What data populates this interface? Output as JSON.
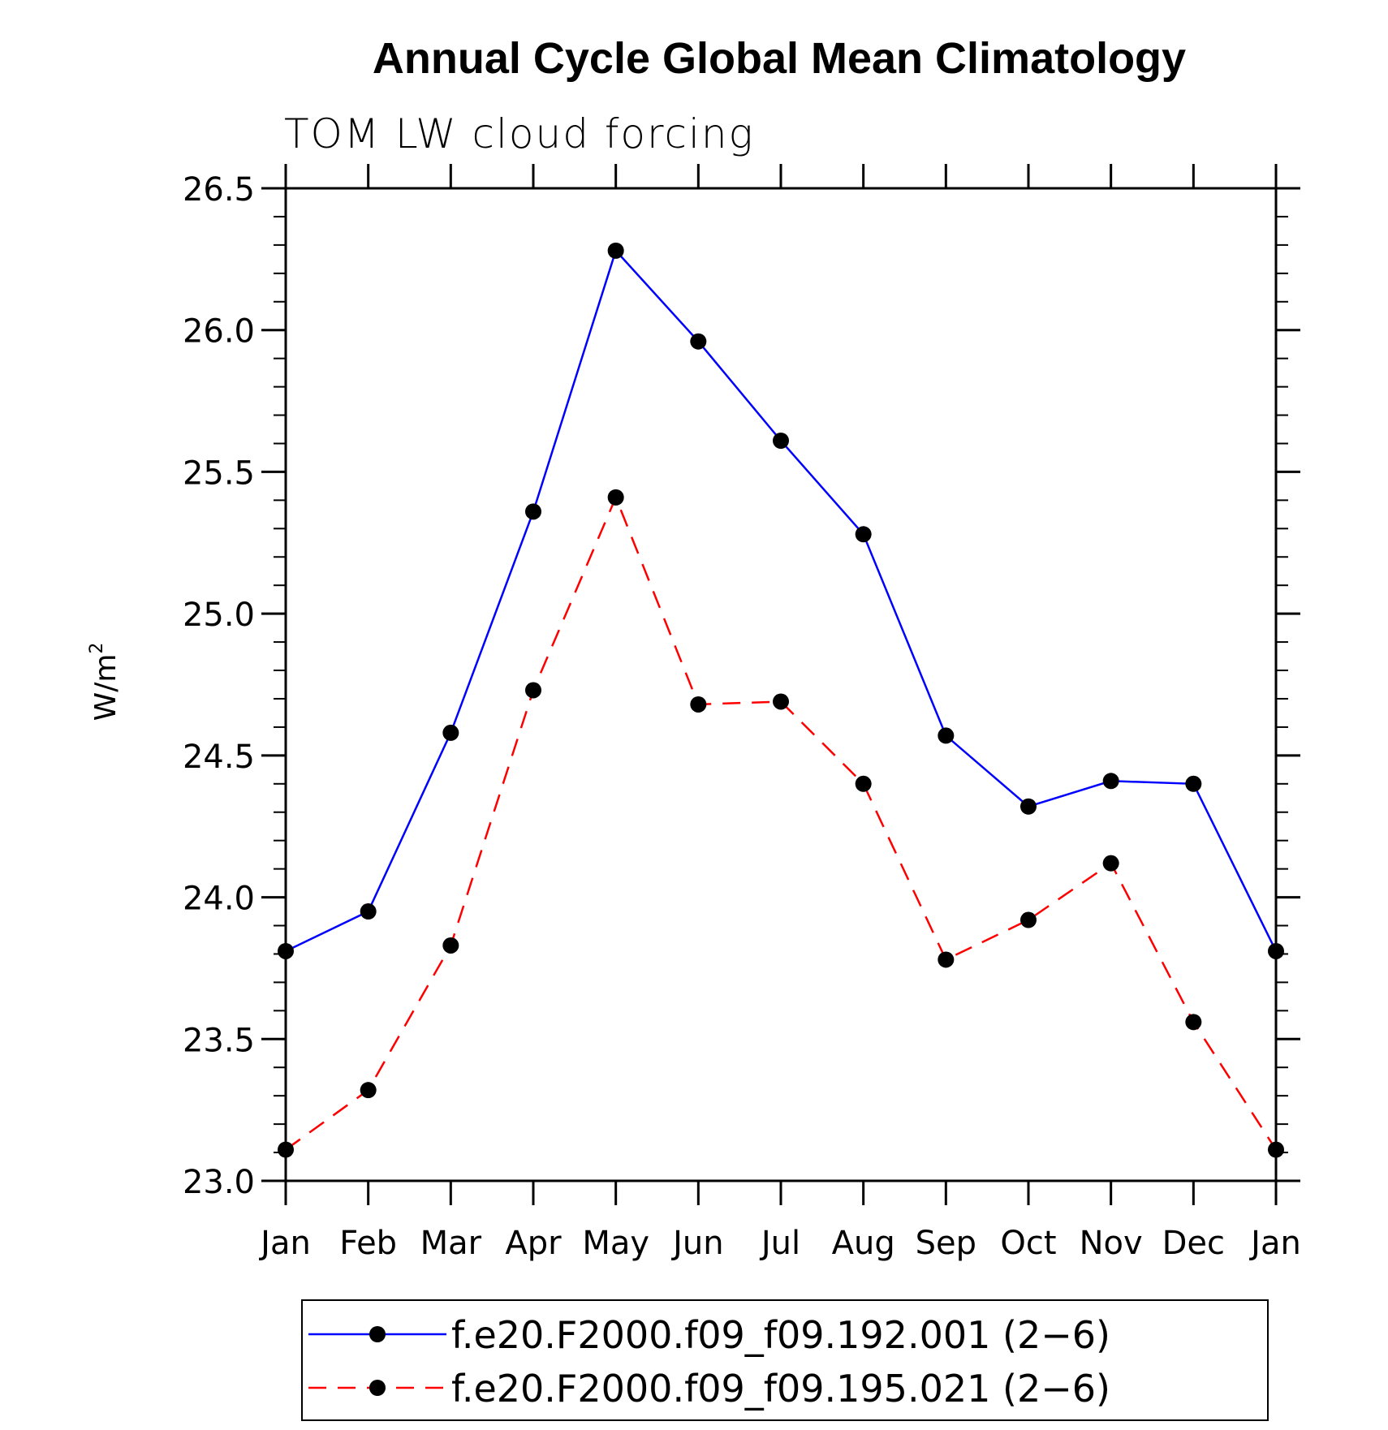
{
  "chart_data": {
    "type": "line",
    "title": "Annual Cycle Global Mean Climatology",
    "subtitle": "TOM LW cloud forcing",
    "ylabel": "W/m",
    "ylabel_superscript": "2",
    "xlabel": "",
    "categories": [
      "Jan",
      "Feb",
      "Mar",
      "Apr",
      "May",
      "Jun",
      "Jul",
      "Aug",
      "Sep",
      "Oct",
      "Nov",
      "Dec",
      "Jan"
    ],
    "ylim": [
      23.0,
      26.5
    ],
    "yticks": [
      "23.0",
      "23.5",
      "24.0",
      "24.5",
      "25.0",
      "25.5",
      "26.0",
      "26.5"
    ],
    "legend_position": "bottom",
    "series": [
      {
        "name": "f.e20.F2000.f09_f09.192.001 (2−6)",
        "color": "#0000ff",
        "dash": "solid",
        "values": [
          23.81,
          23.95,
          24.58,
          25.36,
          26.28,
          25.96,
          25.61,
          25.28,
          24.57,
          24.32,
          24.41,
          24.4,
          23.81
        ]
      },
      {
        "name": "f.e20.F2000.f09_f09.195.021 (2−6)",
        "color": "#ff0000",
        "dash": "dashed",
        "values": [
          23.11,
          23.32,
          23.83,
          24.73,
          25.41,
          24.68,
          24.69,
          24.4,
          23.78,
          23.92,
          24.12,
          23.56,
          23.11
        ]
      }
    ]
  }
}
